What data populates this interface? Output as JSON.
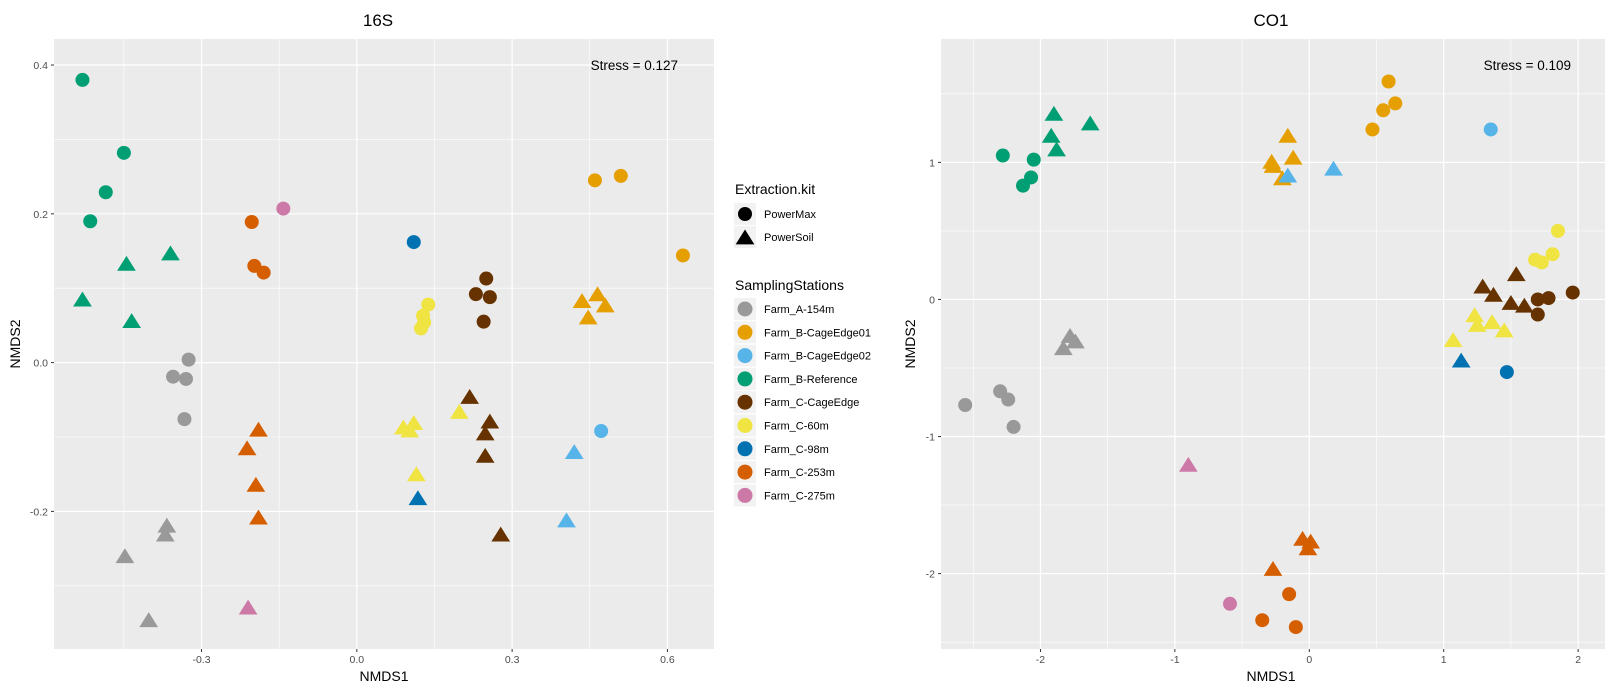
{
  "chart_data": [
    {
      "type": "scatter",
      "title": "16S",
      "xlabel": "NMDS1",
      "ylabel": "NMDS2",
      "xlim": [
        -0.585,
        0.69
      ],
      "ylim": [
        -0.385,
        0.435
      ],
      "xticks": [
        -0.3,
        0.0,
        0.3,
        0.6
      ],
      "xtick_labels": [
        "-0.3",
        "0.0",
        "0.3",
        "0.6"
      ],
      "yticks": [
        -0.2,
        0.0,
        0.2,
        0.4
      ],
      "ytick_labels": [
        "-0.2",
        "0.0",
        "0.2",
        "0.4"
      ],
      "annotation": "Stress = 0.127",
      "grid": true,
      "points": [
        {
          "station": "Farm_B-Reference",
          "kit": "PowerMax",
          "x": -0.53,
          "y": 0.38
        },
        {
          "station": "Farm_B-Reference",
          "kit": "PowerMax",
          "x": -0.45,
          "y": 0.282
        },
        {
          "station": "Farm_B-Reference",
          "kit": "PowerMax",
          "x": -0.485,
          "y": 0.229
        },
        {
          "station": "Farm_B-Reference",
          "kit": "PowerMax",
          "x": -0.515,
          "y": 0.19
        },
        {
          "station": "Farm_B-Reference",
          "kit": "PowerSoil",
          "x": -0.445,
          "y": 0.132
        },
        {
          "station": "Farm_B-Reference",
          "kit": "PowerSoil",
          "x": -0.36,
          "y": 0.146
        },
        {
          "station": "Farm_B-Reference",
          "kit": "PowerSoil",
          "x": -0.53,
          "y": 0.084
        },
        {
          "station": "Farm_B-Reference",
          "kit": "PowerSoil",
          "x": -0.435,
          "y": 0.055
        },
        {
          "station": "Farm_A-154m",
          "kit": "PowerMax",
          "x": -0.355,
          "y": -0.019
        },
        {
          "station": "Farm_A-154m",
          "kit": "PowerMax",
          "x": -0.33,
          "y": -0.022
        },
        {
          "station": "Farm_A-154m",
          "kit": "PowerMax",
          "x": -0.325,
          "y": 0.004
        },
        {
          "station": "Farm_A-154m",
          "kit": "PowerMax",
          "x": -0.333,
          "y": -0.076
        },
        {
          "station": "Farm_A-154m",
          "kit": "PowerSoil",
          "x": -0.367,
          "y": -0.22
        },
        {
          "station": "Farm_A-154m",
          "kit": "PowerSoil",
          "x": -0.37,
          "y": -0.232
        },
        {
          "station": "Farm_A-154m",
          "kit": "PowerSoil",
          "x": -0.448,
          "y": -0.261
        },
        {
          "station": "Farm_A-154m",
          "kit": "PowerSoil",
          "x": -0.402,
          "y": -0.347
        },
        {
          "station": "Farm_C-253m",
          "kit": "PowerMax",
          "x": -0.203,
          "y": 0.189
        },
        {
          "station": "Farm_C-253m",
          "kit": "PowerMax",
          "x": -0.198,
          "y": 0.13
        },
        {
          "station": "Farm_C-253m",
          "kit": "PowerMax",
          "x": -0.18,
          "y": 0.121
        },
        {
          "station": "Farm_C-253m",
          "kit": "PowerSoil",
          "x": -0.19,
          "y": -0.091
        },
        {
          "station": "Farm_C-253m",
          "kit": "PowerSoil",
          "x": -0.212,
          "y": -0.116
        },
        {
          "station": "Farm_C-253m",
          "kit": "PowerSoil",
          "x": -0.195,
          "y": -0.165
        },
        {
          "station": "Farm_C-253m",
          "kit": "PowerSoil",
          "x": -0.19,
          "y": -0.209
        },
        {
          "station": "Farm_C-275m",
          "kit": "PowerMax",
          "x": -0.142,
          "y": 0.207
        },
        {
          "station": "Farm_C-275m",
          "kit": "PowerSoil",
          "x": -0.21,
          "y": -0.33
        },
        {
          "station": "Farm_C-98m",
          "kit": "PowerMax",
          "x": 0.11,
          "y": 0.162
        },
        {
          "station": "Farm_C-98m",
          "kit": "PowerSoil",
          "x": 0.118,
          "y": -0.183
        },
        {
          "station": "Farm_C-60m",
          "kit": "PowerMax",
          "x": 0.138,
          "y": 0.078
        },
        {
          "station": "Farm_C-60m",
          "kit": "PowerMax",
          "x": 0.128,
          "y": 0.063
        },
        {
          "station": "Farm_C-60m",
          "kit": "PowerMax",
          "x": 0.13,
          "y": 0.054
        },
        {
          "station": "Farm_C-60m",
          "kit": "PowerMax",
          "x": 0.124,
          "y": 0.046
        },
        {
          "station": "Farm_C-60m",
          "kit": "PowerSoil",
          "x": 0.09,
          "y": -0.088
        },
        {
          "station": "Farm_C-60m",
          "kit": "PowerSoil",
          "x": 0.11,
          "y": -0.082
        },
        {
          "station": "Farm_C-60m",
          "kit": "PowerSoil",
          "x": 0.102,
          "y": -0.092
        },
        {
          "station": "Farm_C-60m",
          "kit": "PowerSoil",
          "x": 0.198,
          "y": -0.067
        },
        {
          "station": "Farm_C-60m",
          "kit": "PowerSoil",
          "x": 0.115,
          "y": -0.151
        },
        {
          "station": "Farm_C-CageEdge",
          "kit": "PowerMax",
          "x": 0.25,
          "y": 0.113
        },
        {
          "station": "Farm_C-CageEdge",
          "kit": "PowerMax",
          "x": 0.23,
          "y": 0.092
        },
        {
          "station": "Farm_C-CageEdge",
          "kit": "PowerMax",
          "x": 0.257,
          "y": 0.088
        },
        {
          "station": "Farm_C-CageEdge",
          "kit": "PowerMax",
          "x": 0.245,
          "y": 0.055
        },
        {
          "station": "Farm_C-CageEdge",
          "kit": "PowerSoil",
          "x": 0.218,
          "y": -0.047
        },
        {
          "station": "Farm_C-CageEdge",
          "kit": "PowerSoil",
          "x": 0.257,
          "y": -0.08
        },
        {
          "station": "Farm_C-CageEdge",
          "kit": "PowerSoil",
          "x": 0.248,
          "y": -0.096
        },
        {
          "station": "Farm_C-CageEdge",
          "kit": "PowerSoil",
          "x": 0.248,
          "y": -0.126
        },
        {
          "station": "Farm_C-CageEdge",
          "kit": "PowerSoil",
          "x": 0.278,
          "y": -0.232
        },
        {
          "station": "Farm_B-CageEdge01",
          "kit": "PowerMax",
          "x": 0.46,
          "y": 0.245
        },
        {
          "station": "Farm_B-CageEdge01",
          "kit": "PowerMax",
          "x": 0.51,
          "y": 0.251
        },
        {
          "station": "Farm_B-CageEdge01",
          "kit": "PowerMax",
          "x": 0.63,
          "y": 0.144
        },
        {
          "station": "Farm_B-CageEdge01",
          "kit": "PowerSoil",
          "x": 0.435,
          "y": 0.082
        },
        {
          "station": "Farm_B-CageEdge01",
          "kit": "PowerSoil",
          "x": 0.465,
          "y": 0.091
        },
        {
          "station": "Farm_B-CageEdge01",
          "kit": "PowerSoil",
          "x": 0.48,
          "y": 0.076
        },
        {
          "station": "Farm_B-CageEdge01",
          "kit": "PowerSoil",
          "x": 0.447,
          "y": 0.06
        },
        {
          "station": "Farm_B-CageEdge02",
          "kit": "PowerMax",
          "x": 0.472,
          "y": -0.092
        },
        {
          "station": "Farm_B-CageEdge02",
          "kit": "PowerSoil",
          "x": 0.42,
          "y": -0.121
        },
        {
          "station": "Farm_B-CageEdge02",
          "kit": "PowerSoil",
          "x": 0.405,
          "y": -0.213
        }
      ]
    },
    {
      "type": "scatter",
      "title": "CO1",
      "xlabel": "NMDS1",
      "ylabel": "NMDS2",
      "xlim": [
        -2.74,
        2.2
      ],
      "ylim": [
        -2.55,
        1.9
      ],
      "xticks": [
        -2,
        -1,
        0,
        1,
        2
      ],
      "xtick_labels": [
        "-2",
        "-1",
        "0",
        "1",
        "2"
      ],
      "yticks": [
        -2,
        -1,
        0,
        1
      ],
      "ytick_labels": [
        "-2",
        "-1",
        "0",
        "1"
      ],
      "annotation": "Stress = 0.109",
      "grid": true,
      "points": [
        {
          "station": "Farm_B-Reference",
          "kit": "PowerMax",
          "x": -2.28,
          "y": 1.05
        },
        {
          "station": "Farm_B-Reference",
          "kit": "PowerMax",
          "x": -2.05,
          "y": 1.02
        },
        {
          "station": "Farm_B-Reference",
          "kit": "PowerMax",
          "x": -2.07,
          "y": 0.89
        },
        {
          "station": "Farm_B-Reference",
          "kit": "PowerMax",
          "x": -2.13,
          "y": 0.83
        },
        {
          "station": "Farm_B-Reference",
          "kit": "PowerSoil",
          "x": -1.9,
          "y": 1.35
        },
        {
          "station": "Farm_B-Reference",
          "kit": "PowerSoil",
          "x": -1.63,
          "y": 1.28
        },
        {
          "station": "Farm_B-Reference",
          "kit": "PowerSoil",
          "x": -1.92,
          "y": 1.19
        },
        {
          "station": "Farm_B-Reference",
          "kit": "PowerSoil",
          "x": -1.88,
          "y": 1.09
        },
        {
          "station": "Farm_A-154m",
          "kit": "PowerSoil",
          "x": -1.78,
          "y": -0.27
        },
        {
          "station": "Farm_A-154m",
          "kit": "PowerSoil",
          "x": -1.74,
          "y": -0.31
        },
        {
          "station": "Farm_A-154m",
          "kit": "PowerSoil",
          "x": -1.83,
          "y": -0.36
        },
        {
          "station": "Farm_A-154m",
          "kit": "PowerMax",
          "x": -2.56,
          "y": -0.77
        },
        {
          "station": "Farm_A-154m",
          "kit": "PowerMax",
          "x": -2.3,
          "y": -0.67
        },
        {
          "station": "Farm_A-154m",
          "kit": "PowerMax",
          "x": -2.24,
          "y": -0.73
        },
        {
          "station": "Farm_A-154m",
          "kit": "PowerMax",
          "x": -2.2,
          "y": -0.93
        },
        {
          "station": "Farm_C-275m",
          "kit": "PowerSoil",
          "x": -0.9,
          "y": -1.21
        },
        {
          "station": "Farm_C-275m",
          "kit": "PowerMax",
          "x": -0.59,
          "y": -2.22
        },
        {
          "station": "Farm_C-253m",
          "kit": "PowerSoil",
          "x": -0.05,
          "y": -1.75
        },
        {
          "station": "Farm_C-253m",
          "kit": "PowerSoil",
          "x": 0.01,
          "y": -1.77
        },
        {
          "station": "Farm_C-253m",
          "kit": "PowerSoil",
          "x": -0.01,
          "y": -1.82
        },
        {
          "station": "Farm_C-253m",
          "kit": "PowerSoil",
          "x": -0.27,
          "y": -1.97
        },
        {
          "station": "Farm_C-253m",
          "kit": "PowerMax",
          "x": -0.15,
          "y": -2.15
        },
        {
          "station": "Farm_C-253m",
          "kit": "PowerMax",
          "x": -0.35,
          "y": -2.34
        },
        {
          "station": "Farm_C-253m",
          "kit": "PowerMax",
          "x": -0.1,
          "y": -2.39
        },
        {
          "station": "Farm_B-CageEdge01",
          "kit": "PowerSoil",
          "x": -0.16,
          "y": 1.19
        },
        {
          "station": "Farm_B-CageEdge01",
          "kit": "PowerSoil",
          "x": -0.28,
          "y": 1.0
        },
        {
          "station": "Farm_B-CageEdge01",
          "kit": "PowerSoil",
          "x": -0.12,
          "y": 1.03
        },
        {
          "station": "Farm_B-CageEdge01",
          "kit": "PowerSoil",
          "x": -0.27,
          "y": 0.97
        },
        {
          "station": "Farm_B-CageEdge01",
          "kit": "PowerSoil",
          "x": -0.2,
          "y": 0.88
        },
        {
          "station": "Farm_B-CageEdge01",
          "kit": "PowerMax",
          "x": 0.59,
          "y": 1.59
        },
        {
          "station": "Farm_B-CageEdge01",
          "kit": "PowerMax",
          "x": 0.64,
          "y": 1.43
        },
        {
          "station": "Farm_B-CageEdge01",
          "kit": "PowerMax",
          "x": 0.55,
          "y": 1.38
        },
        {
          "station": "Farm_B-CageEdge01",
          "kit": "PowerMax",
          "x": 0.47,
          "y": 1.24
        },
        {
          "station": "Farm_B-CageEdge02",
          "kit": "PowerSoil",
          "x": -0.16,
          "y": 0.9
        },
        {
          "station": "Farm_B-CageEdge02",
          "kit": "PowerSoil",
          "x": 0.18,
          "y": 0.95
        },
        {
          "station": "Farm_B-CageEdge02",
          "kit": "PowerMax",
          "x": 1.35,
          "y": 1.24
        },
        {
          "station": "Farm_C-98m",
          "kit": "PowerSoil",
          "x": 1.13,
          "y": -0.45
        },
        {
          "station": "Farm_C-98m",
          "kit": "PowerMax",
          "x": 1.47,
          "y": -0.53
        },
        {
          "station": "Farm_C-60m",
          "kit": "PowerMax",
          "x": 1.85,
          "y": 0.5
        },
        {
          "station": "Farm_C-60m",
          "kit": "PowerMax",
          "x": 1.68,
          "y": 0.29
        },
        {
          "station": "Farm_C-60m",
          "kit": "PowerMax",
          "x": 1.73,
          "y": 0.27
        },
        {
          "station": "Farm_C-60m",
          "kit": "PowerMax",
          "x": 1.81,
          "y": 0.33
        },
        {
          "station": "Farm_C-60m",
          "kit": "PowerSoil",
          "x": 1.23,
          "y": -0.12
        },
        {
          "station": "Farm_C-60m",
          "kit": "PowerSoil",
          "x": 1.25,
          "y": -0.19
        },
        {
          "station": "Farm_C-60m",
          "kit": "PowerSoil",
          "x": 1.36,
          "y": -0.17
        },
        {
          "station": "Farm_C-60m",
          "kit": "PowerSoil",
          "x": 1.45,
          "y": -0.23
        },
        {
          "station": "Farm_C-60m",
          "kit": "PowerSoil",
          "x": 1.07,
          "y": -0.3
        },
        {
          "station": "Farm_C-CageEdge",
          "kit": "PowerSoil",
          "x": 1.29,
          "y": 0.09
        },
        {
          "station": "Farm_C-CageEdge",
          "kit": "PowerSoil",
          "x": 1.37,
          "y": 0.03
        },
        {
          "station": "Farm_C-CageEdge",
          "kit": "PowerSoil",
          "x": 1.54,
          "y": 0.18
        },
        {
          "station": "Farm_C-CageEdge",
          "kit": "PowerSoil",
          "x": 1.5,
          "y": -0.03
        },
        {
          "station": "Farm_C-CageEdge",
          "kit": "PowerSoil",
          "x": 1.6,
          "y": -0.05
        },
        {
          "station": "Farm_C-CageEdge",
          "kit": "PowerMax",
          "x": 1.7,
          "y": 0.0
        },
        {
          "station": "Farm_C-CageEdge",
          "kit": "PowerMax",
          "x": 1.78,
          "y": 0.01
        },
        {
          "station": "Farm_C-CageEdge",
          "kit": "PowerMax",
          "x": 1.7,
          "y": -0.11
        },
        {
          "station": "Farm_C-CageEdge",
          "kit": "PowerMax",
          "x": 1.96,
          "y": 0.05
        }
      ]
    }
  ],
  "legend": {
    "kit_title": "Extraction.kit",
    "kits": [
      {
        "name": "PowerMax",
        "shape": "circle"
      },
      {
        "name": "PowerSoil",
        "shape": "triangle"
      }
    ],
    "station_title": "SamplingStations",
    "stations": [
      {
        "name": "Farm_A-154m",
        "color": "#999999"
      },
      {
        "name": "Farm_B-CageEdge01",
        "color": "#E69F00"
      },
      {
        "name": "Farm_B-CageEdge02",
        "color": "#56B4E9"
      },
      {
        "name": "Farm_B-Reference",
        "color": "#009E73"
      },
      {
        "name": "Farm_C-CageEdge",
        "color": "#663300"
      },
      {
        "name": "Farm_C-60m",
        "color": "#F0E442"
      },
      {
        "name": "Farm_C-98m",
        "color": "#0072B2"
      },
      {
        "name": "Farm_C-253m",
        "color": "#D55E00"
      },
      {
        "name": "Farm_C-275m",
        "color": "#CC79A7"
      }
    ]
  },
  "style": {
    "panel_background": "#EBEBEB",
    "grid_color": "#FFFFFF"
  }
}
